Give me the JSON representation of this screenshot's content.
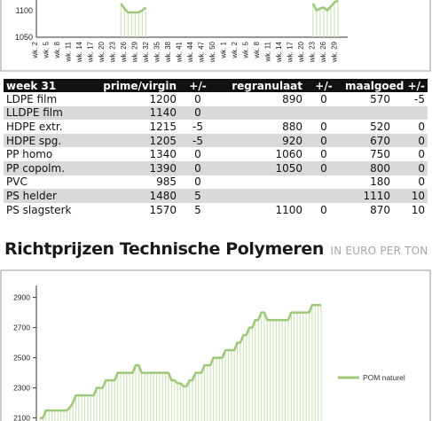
{
  "top_chart": {
    "chart_data": {
      "type": "line",
      "ytick_labels": [
        "1100",
        "1050"
      ],
      "x_tick_labels": [
        "wk. 2",
        "wk. 5",
        "wk. 8",
        "wk. 11",
        "wk. 14",
        "wk. 17",
        "wk. 20",
        "wk. 23",
        "wk. 26",
        "wk. 29",
        "wk. 32",
        "wk. 35",
        "wk. 38",
        "wk. 41",
        "wk. 44",
        "wk. 47",
        "wk. 50",
        "wk. 1",
        "wk. 2",
        "wk. 5",
        "wk. 8",
        "wk. 11",
        "wk. 14",
        "wk. 17",
        "wk. 20",
        "wk. 23",
        "wk. 26",
        "wk. 29"
      ],
      "ylim": [
        1050,
        1125
      ],
      "series": [
        {
          "segments": [
            {
              "x": [
                24,
                25,
                26,
                27,
                28,
                29,
                30,
                31
              ],
              "y": [
                1118,
                1108,
                1100,
                1100,
                1100,
                1100,
                1104,
                1110
              ]
            },
            {
              "x": [
                78,
                79,
                80,
                81,
                82,
                83,
                84,
                85
              ],
              "y": [
                1118,
                1104,
                1108,
                1110,
                1104,
                1112,
                1120,
                1124
              ]
            }
          ],
          "color": "#9dc87a"
        }
      ]
    }
  },
  "price_table": {
    "headers": {
      "week": "week 31",
      "prime": "prime/virgin",
      "d1": "+/-",
      "regranulaat": "regranulaat",
      "d2": "+/-",
      "maalgoed": "maalgoed",
      "d3": "+/-"
    },
    "rows": [
      {
        "name": "LDPE film",
        "prime": "1200",
        "d1": "0",
        "regr": "890",
        "d2": "0",
        "maal": "570",
        "d3": "-5"
      },
      {
        "name": "LLDPE film",
        "prime": "1140",
        "d1": "0",
        "regr": "",
        "d2": "",
        "maal": "",
        "d3": ""
      },
      {
        "name": "HDPE extr.",
        "prime": "1215",
        "d1": "-5",
        "regr": "880",
        "d2": "0",
        "maal": "520",
        "d3": "0"
      },
      {
        "name": "HDPE spg.",
        "prime": "1205",
        "d1": "-5",
        "regr": "920",
        "d2": "0",
        "maal": "670",
        "d3": "0"
      },
      {
        "name": "PP homo",
        "prime": "1340",
        "d1": "0",
        "regr": "1060",
        "d2": "0",
        "maal": "750",
        "d3": "0"
      },
      {
        "name": "PP copolm.",
        "prime": "1390",
        "d1": "0",
        "regr": "1050",
        "d2": "0",
        "maal": "800",
        "d3": "0"
      },
      {
        "name": "PVC",
        "prime": "985",
        "d1": "0",
        "regr": "",
        "d2": "",
        "maal": "180",
        "d3": "0"
      },
      {
        "name": "PS helder",
        "prime": "1480",
        "d1": "5",
        "regr": "",
        "d2": "",
        "maal": "1110",
        "d3": "10"
      },
      {
        "name": "PS slagsterk",
        "prime": "1570",
        "d1": "5",
        "regr": "1100",
        "d2": "0",
        "maal": "870",
        "d3": "10"
      }
    ]
  },
  "section": {
    "title": "Richtprijzen Technische Polymeren",
    "subtitle": "IN EURO PER TON"
  },
  "bottom_chart": {
    "chart_data": {
      "type": "line",
      "title": "",
      "xlabel": "",
      "ylabel": "",
      "yticks": [
        2100,
        2300,
        2500,
        2700,
        2900
      ],
      "ylim": [
        2080,
        2980
      ],
      "x": [
        1,
        2,
        3,
        4,
        5,
        6,
        7,
        8,
        9,
        10,
        11,
        12,
        13,
        14,
        15,
        16,
        17,
        18,
        19,
        20,
        21,
        22,
        23,
        24,
        25,
        26,
        27,
        28,
        29,
        30,
        31,
        32,
        33,
        34,
        35,
        36,
        37,
        38,
        39,
        40,
        41,
        42,
        43,
        44,
        45,
        46,
        47,
        48,
        49,
        50,
        51,
        52,
        53,
        54,
        55,
        56,
        57,
        58,
        59,
        60,
        61,
        62,
        63,
        64,
        65,
        66,
        67,
        68,
        69,
        70,
        71,
        72,
        73,
        74,
        75,
        76,
        77,
        78,
        79,
        80,
        81,
        82,
        83,
        84,
        85,
        86,
        87,
        88,
        89,
        90,
        91,
        92,
        93,
        94,
        95
      ],
      "series": [
        {
          "name": "POM naturel",
          "color": "#9dc87a",
          "values": [
            2100,
            2100,
            2150,
            2150,
            2150,
            2150,
            2150,
            2150,
            2150,
            2150,
            2170,
            2200,
            2250,
            2250,
            2250,
            2250,
            2250,
            2250,
            2250,
            2300,
            2300,
            2300,
            2350,
            2350,
            2350,
            2350,
            2400,
            2400,
            2400,
            2400,
            2400,
            2400,
            2450,
            2450,
            2400,
            2400,
            2400,
            2400,
            2400,
            2400,
            2400,
            2400,
            2400,
            2400,
            2350,
            2350,
            2330,
            2330,
            2310,
            2310,
            2350,
            2350,
            2400,
            2400,
            2400,
            2450,
            2450,
            2450,
            2500,
            2500,
            2500,
            2500,
            2550,
            2550,
            2550,
            2550,
            2600,
            2600,
            2650,
            2650,
            2700,
            2700,
            2750,
            2750,
            2800,
            2800,
            2750,
            2750,
            2750,
            2750,
            2750,
            2750,
            2750,
            2750,
            2800,
            2800,
            2800,
            2800,
            2800,
            2800,
            2800,
            2850,
            2850,
            2850,
            2850
          ]
        }
      ],
      "legend_position": "right"
    }
  }
}
